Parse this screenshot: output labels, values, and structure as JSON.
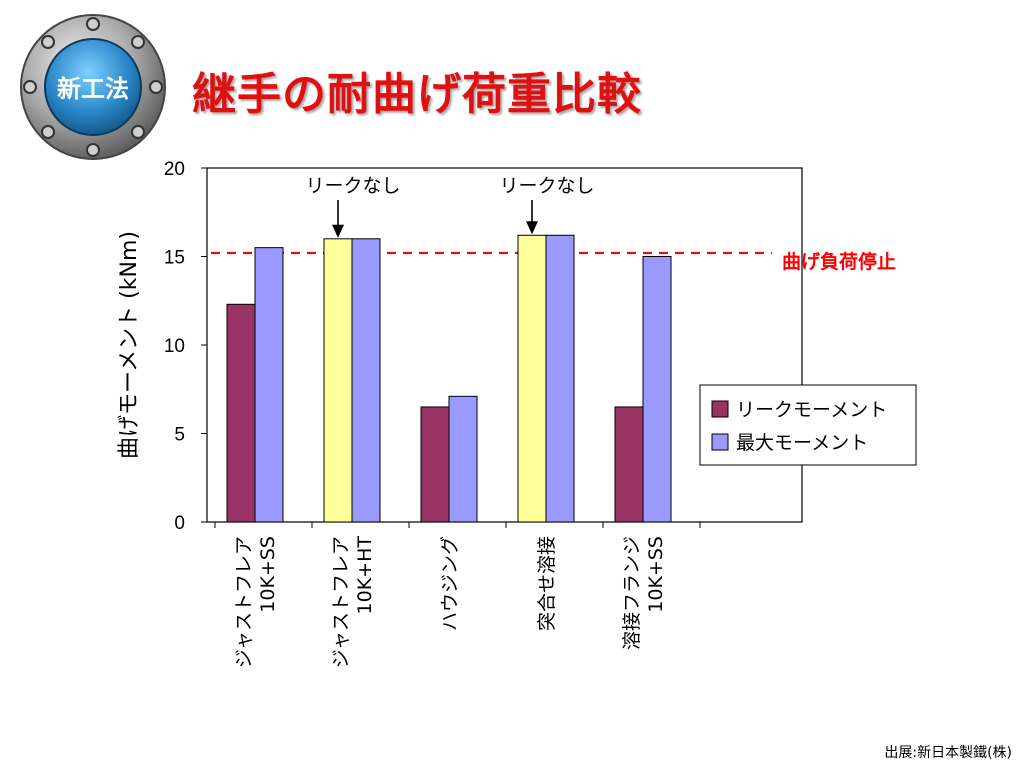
{
  "badge": {
    "label": "新工法"
  },
  "title": "継手の耐曲げ荷重比較",
  "source": "出展:新日本製鐵(株)",
  "colors": {
    "leak": "#993366",
    "max": "#9999ff",
    "max_highlight": "#ffff99",
    "limit_line": "#ff0000",
    "title": "#e01010"
  },
  "chart_data": {
    "type": "bar",
    "ylabel": "曲げモーメント (kNm)",
    "ylim": [
      0,
      20
    ],
    "yticks": [
      "0",
      "5",
      "10",
      "15",
      "20"
    ],
    "categories": [
      [
        "ジャストフレア",
        "10K+SS"
      ],
      [
        "ジャストフレア",
        "10K+HT"
      ],
      [
        "ハウジング"
      ],
      [
        "突合せ溶接"
      ],
      [
        "溶接フランジ",
        "10K+SS"
      ]
    ],
    "series": [
      {
        "name": "リークモーメント",
        "values": [
          12.3,
          16.0,
          6.5,
          16.2,
          6.5
        ],
        "highlight": [
          false,
          true,
          false,
          true,
          false
        ]
      },
      {
        "name": "最大モーメント",
        "values": [
          15.5,
          16.0,
          7.1,
          16.2,
          15.0
        ],
        "highlight": [
          false,
          false,
          false,
          false,
          false
        ]
      }
    ],
    "reference_line": {
      "value": 15.2,
      "label": "曲げ負荷停止"
    },
    "annotations": [
      {
        "text": "リークなし",
        "category_index": 1
      },
      {
        "text": "リークなし",
        "category_index": 3
      }
    ],
    "legend": {
      "position": "right"
    }
  }
}
